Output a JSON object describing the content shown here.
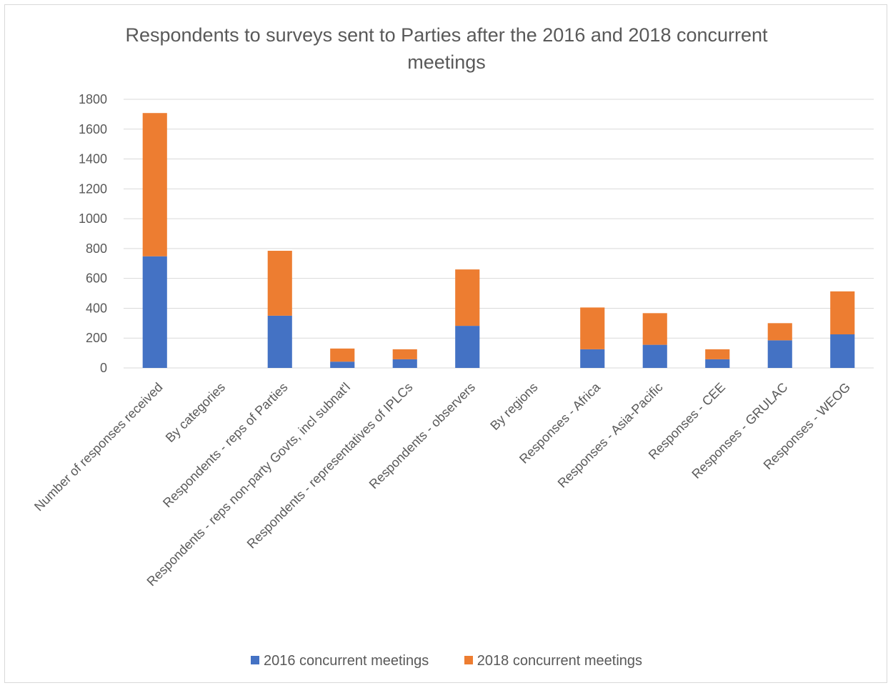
{
  "chart_data": {
    "type": "bar",
    "stacked": true,
    "title": "Respondents to surveys sent to Parties after the 2016 and 2018 concurrent meetings",
    "xlabel": "",
    "ylabel": "",
    "ylim": [
      0,
      1800
    ],
    "yticks": [
      0,
      200,
      400,
      600,
      800,
      1000,
      1200,
      1400,
      1600,
      1800
    ],
    "grid": true,
    "legend_position": "bottom",
    "categories": [
      "Number of responses received",
      "By categories",
      "Respondents - reps of Parties",
      "Respondents - reps non-party Govts, incl subnat'l",
      "Respondents - representatives of IPLCs",
      "Respondents - observers",
      "By regions",
      "Responses - Africa",
      "Responses - Asia-Pacific",
      "Responses - CEE",
      "Responses - GRULAC",
      "Responses - WEOG"
    ],
    "series": [
      {
        "name": "2016 concurrent meetings",
        "color": "#4472c4",
        "values": [
          748,
          null,
          350,
          42,
          58,
          282,
          null,
          125,
          155,
          58,
          185,
          225
        ]
      },
      {
        "name": "2018 concurrent meetings",
        "color": "#ed7d31",
        "values": [
          960,
          null,
          435,
          88,
          67,
          378,
          null,
          280,
          212,
          67,
          115,
          288
        ]
      }
    ]
  }
}
